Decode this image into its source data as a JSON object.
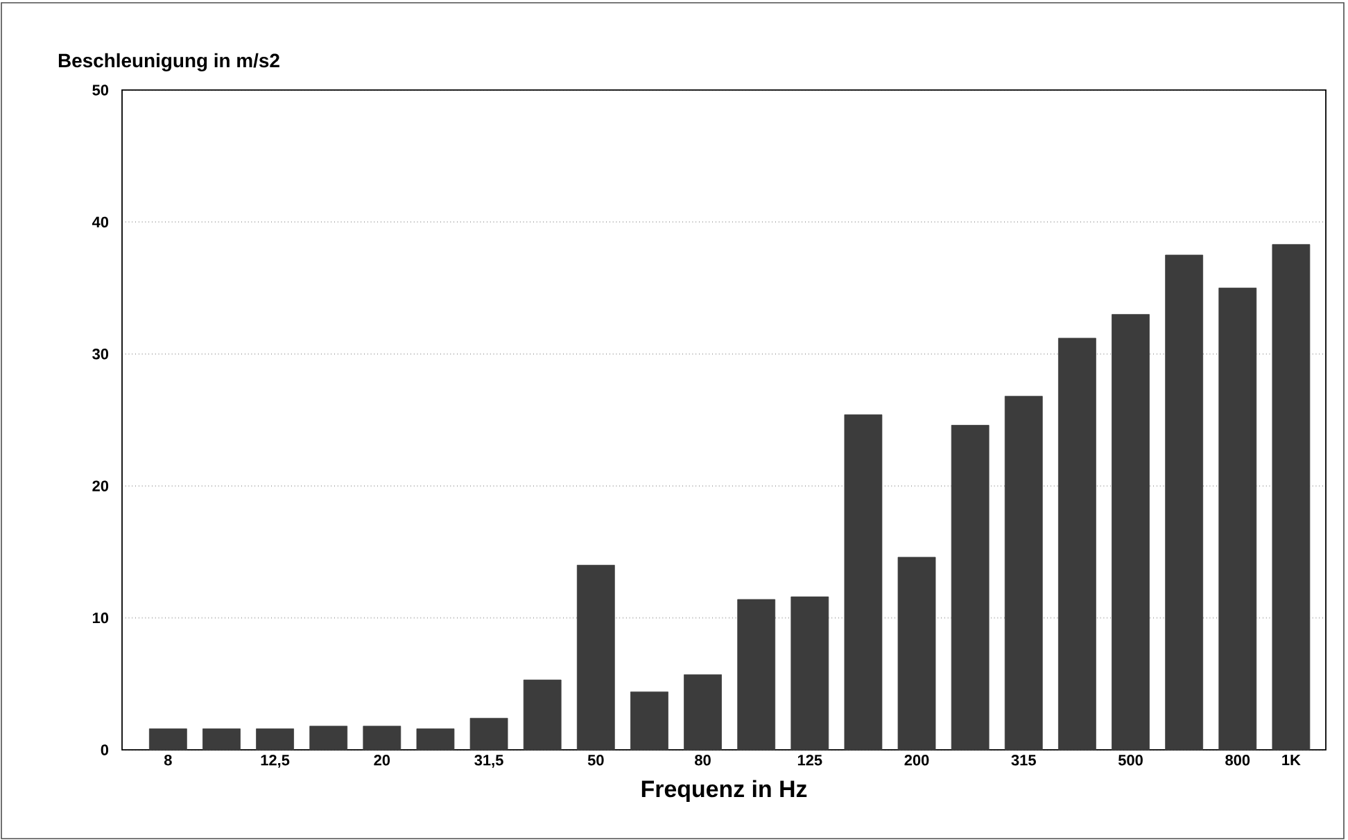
{
  "chart_data": {
    "type": "bar",
    "ylabel": "Beschleunigung in m/s2",
    "xlabel": "Frequenz in Hz",
    "categories": [
      "8",
      null,
      "12,5",
      null,
      "20",
      null,
      "31,5",
      null,
      "50",
      null,
      "80",
      null,
      "125",
      null,
      "200",
      null,
      "315",
      null,
      "500",
      null,
      "800",
      "1K"
    ],
    "values": [
      1.6,
      1.6,
      1.6,
      1.8,
      1.8,
      1.6,
      2.4,
      5.3,
      14.0,
      4.4,
      5.7,
      11.4,
      11.6,
      25.4,
      14.6,
      24.6,
      26.8,
      31.2,
      33.0,
      37.5,
      35.0,
      38.3
    ],
    "color": "#3c3c3c",
    "ylim": [
      0,
      50
    ],
    "yticks": [
      0,
      10,
      20,
      30,
      40,
      50
    ],
    "grid": "y"
  }
}
